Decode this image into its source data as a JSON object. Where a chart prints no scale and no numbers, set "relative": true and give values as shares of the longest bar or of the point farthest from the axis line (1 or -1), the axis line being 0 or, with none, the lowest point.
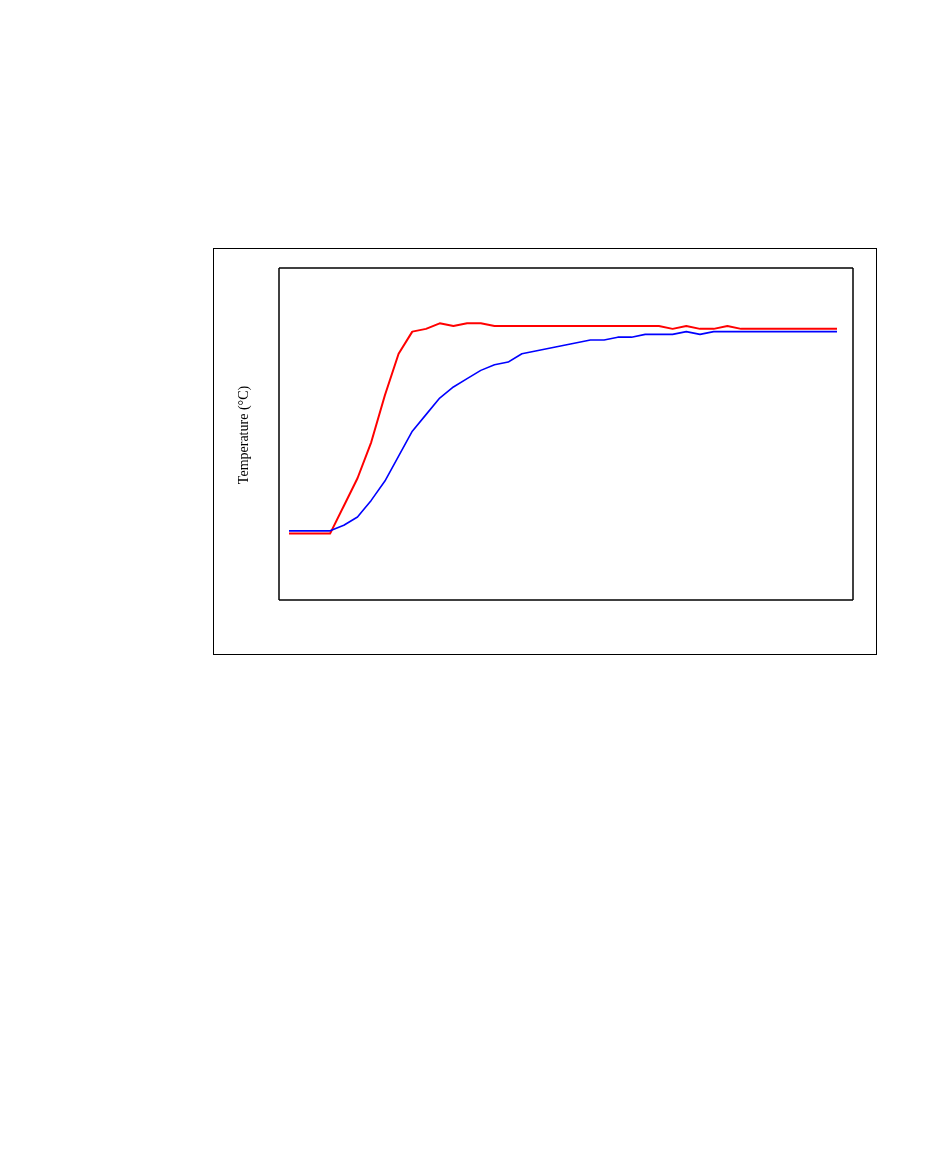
{
  "chart_data": {
    "type": "line",
    "ylabel": "Temperature (°C)",
    "relative": true,
    "legend": false,
    "grid": false,
    "marker": "none",
    "categories": [
      null,
      null,
      null,
      null,
      null,
      null,
      null,
      null,
      null,
      null,
      null,
      null,
      null,
      null,
      null,
      null,
      null,
      null,
      null,
      null,
      null,
      null,
      null,
      null,
      null,
      null,
      null,
      null,
      null,
      null,
      null,
      null,
      null,
      null,
      null,
      null,
      null,
      null,
      null,
      null,
      null
    ],
    "series": [
      {
        "color": "#ff0000",
        "values": [
          0.24,
          0.24,
          0.24,
          0.24,
          0.34,
          0.44,
          0.57,
          0.74,
          0.89,
          0.97,
          0.98,
          1,
          0.99,
          1,
          1,
          0.99,
          0.99,
          0.99,
          0.99,
          0.99,
          0.99,
          0.99,
          0.99,
          0.99,
          0.99,
          0.99,
          0.99,
          0.99,
          0.98,
          0.99,
          0.98,
          0.98,
          0.99,
          0.98,
          0.98,
          0.98,
          0.98,
          0.98,
          0.98,
          0.98,
          0.98
        ]
      },
      {
        "color": "#0000ff",
        "values": [
          0.25,
          0.25,
          0.25,
          0.25,
          0.27,
          0.3,
          0.36,
          0.43,
          0.52,
          0.61,
          0.67,
          0.73,
          0.77,
          0.8,
          0.83,
          0.85,
          0.86,
          0.89,
          0.9,
          0.91,
          0.92,
          0.93,
          0.94,
          0.94,
          0.95,
          0.95,
          0.96,
          0.96,
          0.96,
          0.97,
          0.96,
          0.97,
          0.97,
          0.97,
          0.97,
          0.97,
          0.97,
          0.97,
          0.97,
          0.97,
          0.97
        ]
      }
    ]
  }
}
